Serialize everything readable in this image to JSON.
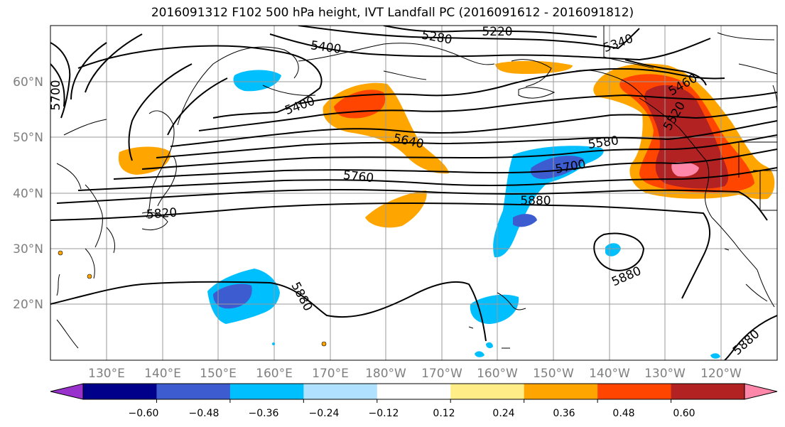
{
  "title": "2016091312 F102 500 hPa height, IVT Landfall PC (2016091612 - 2016091812)",
  "map": {
    "lat_labels": [
      "60°N",
      "50°N",
      "40°N",
      "30°N",
      "20°N"
    ],
    "lon_labels": [
      "130°E",
      "140°E",
      "150°E",
      "160°E",
      "170°E",
      "180°W",
      "170°W",
      "160°W",
      "150°W",
      "140°W",
      "130°W",
      "120°W"
    ],
    "contour_labels": [
      "5220",
      "5280",
      "5340",
      "5400",
      "5400",
      "5460",
      "5520",
      "5580",
      "5640",
      "5700",
      "5700",
      "5760",
      "5820",
      "5880",
      "5880",
      "5880",
      "5880"
    ]
  },
  "colorbar": {
    "tick_labels": [
      "−0.60",
      "−0.48",
      "−0.36",
      "−0.24",
      "−0.12",
      "0.12",
      "0.24",
      "0.36",
      "0.48",
      "0.60"
    ],
    "colors": [
      "#9932cc",
      "#00008b",
      "#3c5cd0",
      "#00bfff",
      "#b0e2ff",
      "#ffffff",
      "#ffee88",
      "#ffa500",
      "#ff4500",
      "#b22222",
      "#ff88aa"
    ]
  }
}
